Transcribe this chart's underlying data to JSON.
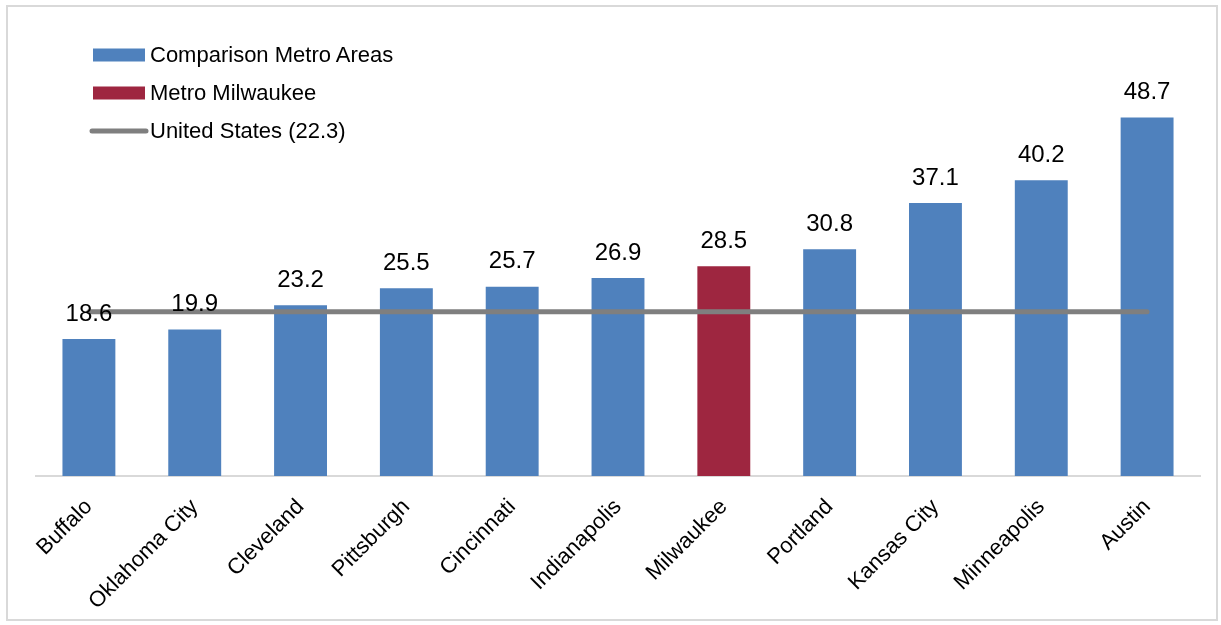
{
  "chart_data": {
    "type": "bar",
    "stacked": true,
    "legend": "top left",
    "tick_labels": "x",
    "categories": [
      "Buffalo",
      "Oklahoma City",
      "Cleveland",
      "Pittsburgh",
      "Cincinnati",
      "Indianapolis",
      "Milwaukee",
      "Portland",
      "Kansas City",
      "Minneapolis",
      "Austin"
    ],
    "series": [
      {
        "name": "Comparison Metro Areas",
        "color": "#4f81bd",
        "values": [
          18.6,
          19.9,
          23.2,
          25.5,
          25.7,
          26.9,
          null,
          30.8,
          37.1,
          40.2,
          48.7
        ],
        "value_labels": [
          "18.6",
          "19.9",
          "23.2",
          "25.5",
          "25.7",
          "26.9",
          null,
          "30.8",
          "37.1",
          "40.2",
          "48.7"
        ]
      },
      {
        "name": "Metro Milwaukee",
        "color": "#9e2640",
        "values": [
          null,
          null,
          null,
          null,
          null,
          null,
          28.5,
          null,
          null,
          null,
          null
        ],
        "value_labels": [
          null,
          null,
          null,
          null,
          null,
          null,
          "28.5",
          null,
          null,
          null,
          null
        ]
      },
      {
        "name": "United States (22.3)",
        "type": "line",
        "color": "#7f7f7f",
        "values": [
          22.3,
          22.3,
          22.3,
          22.3,
          22.3,
          22.3,
          22.3,
          22.3,
          22.3,
          22.3,
          22.3
        ]
      }
    ]
  }
}
